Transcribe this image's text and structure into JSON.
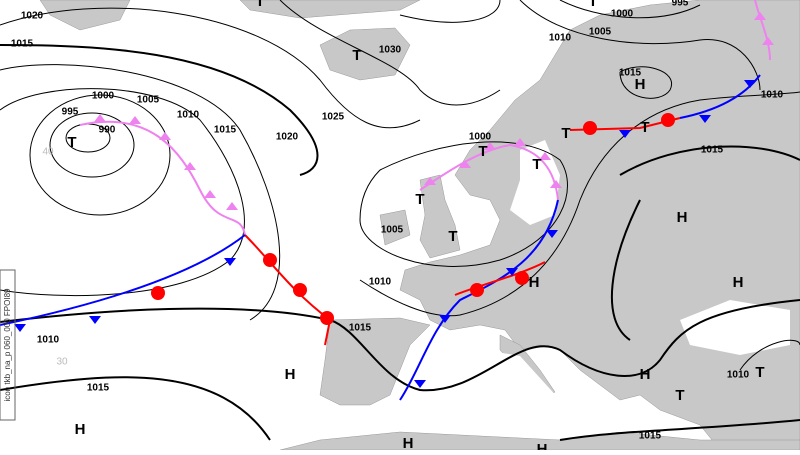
{
  "map": {
    "isobar_labels": [
      1020,
      1015,
      1030,
      1000,
      1005,
      995,
      990,
      1010,
      1015,
      1025,
      1020,
      1000,
      1005,
      1010,
      1015,
      1010,
      1015,
      1000,
      1005,
      1010,
      1015,
      1010,
      1015,
      1010,
      1015,
      995
    ],
    "pressure_centers": [
      "T",
      "T",
      "T",
      "T",
      "T",
      "T",
      "T",
      "T",
      "T",
      "T",
      "T",
      "T",
      "H",
      "H",
      "H",
      "H",
      "H",
      "H",
      "H",
      "H",
      "H"
    ],
    "latitude_labels": [
      "40",
      "30"
    ],
    "sidebar": "icon tkb_na_p 060_000 FPOI89"
  }
}
